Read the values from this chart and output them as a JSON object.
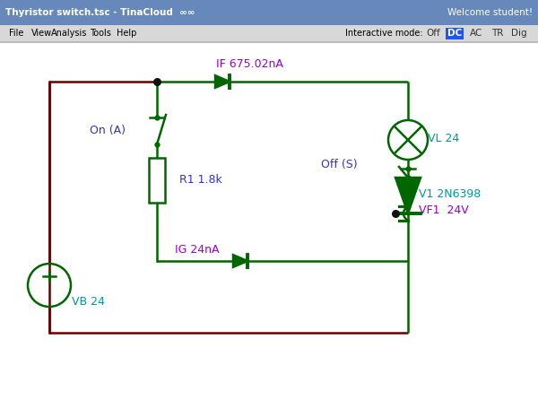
{
  "title": "Thyristor switch.tsc - TinaCloud",
  "welcome": "Welcome student!",
  "circuit_bg": "#ffffff",
  "wire_color": "#006600",
  "dark_red": "#660000",
  "blue_label": "#3333cc",
  "cyan_label": "#009999",
  "purple_label": "#9900cc",
  "title_bg": "#5577aa",
  "menu_bg": "#e8e8e8",
  "labels": {
    "IF": "IF 675.02nA",
    "VL": "VL 24",
    "On_A": "On (A)",
    "R1": "R1 1.8k",
    "Off_S": "Off (S)",
    "VF1": "VF1  24V",
    "IG": "IG 24nA",
    "V1": "V1 2N6398",
    "VB": "VB 24"
  }
}
